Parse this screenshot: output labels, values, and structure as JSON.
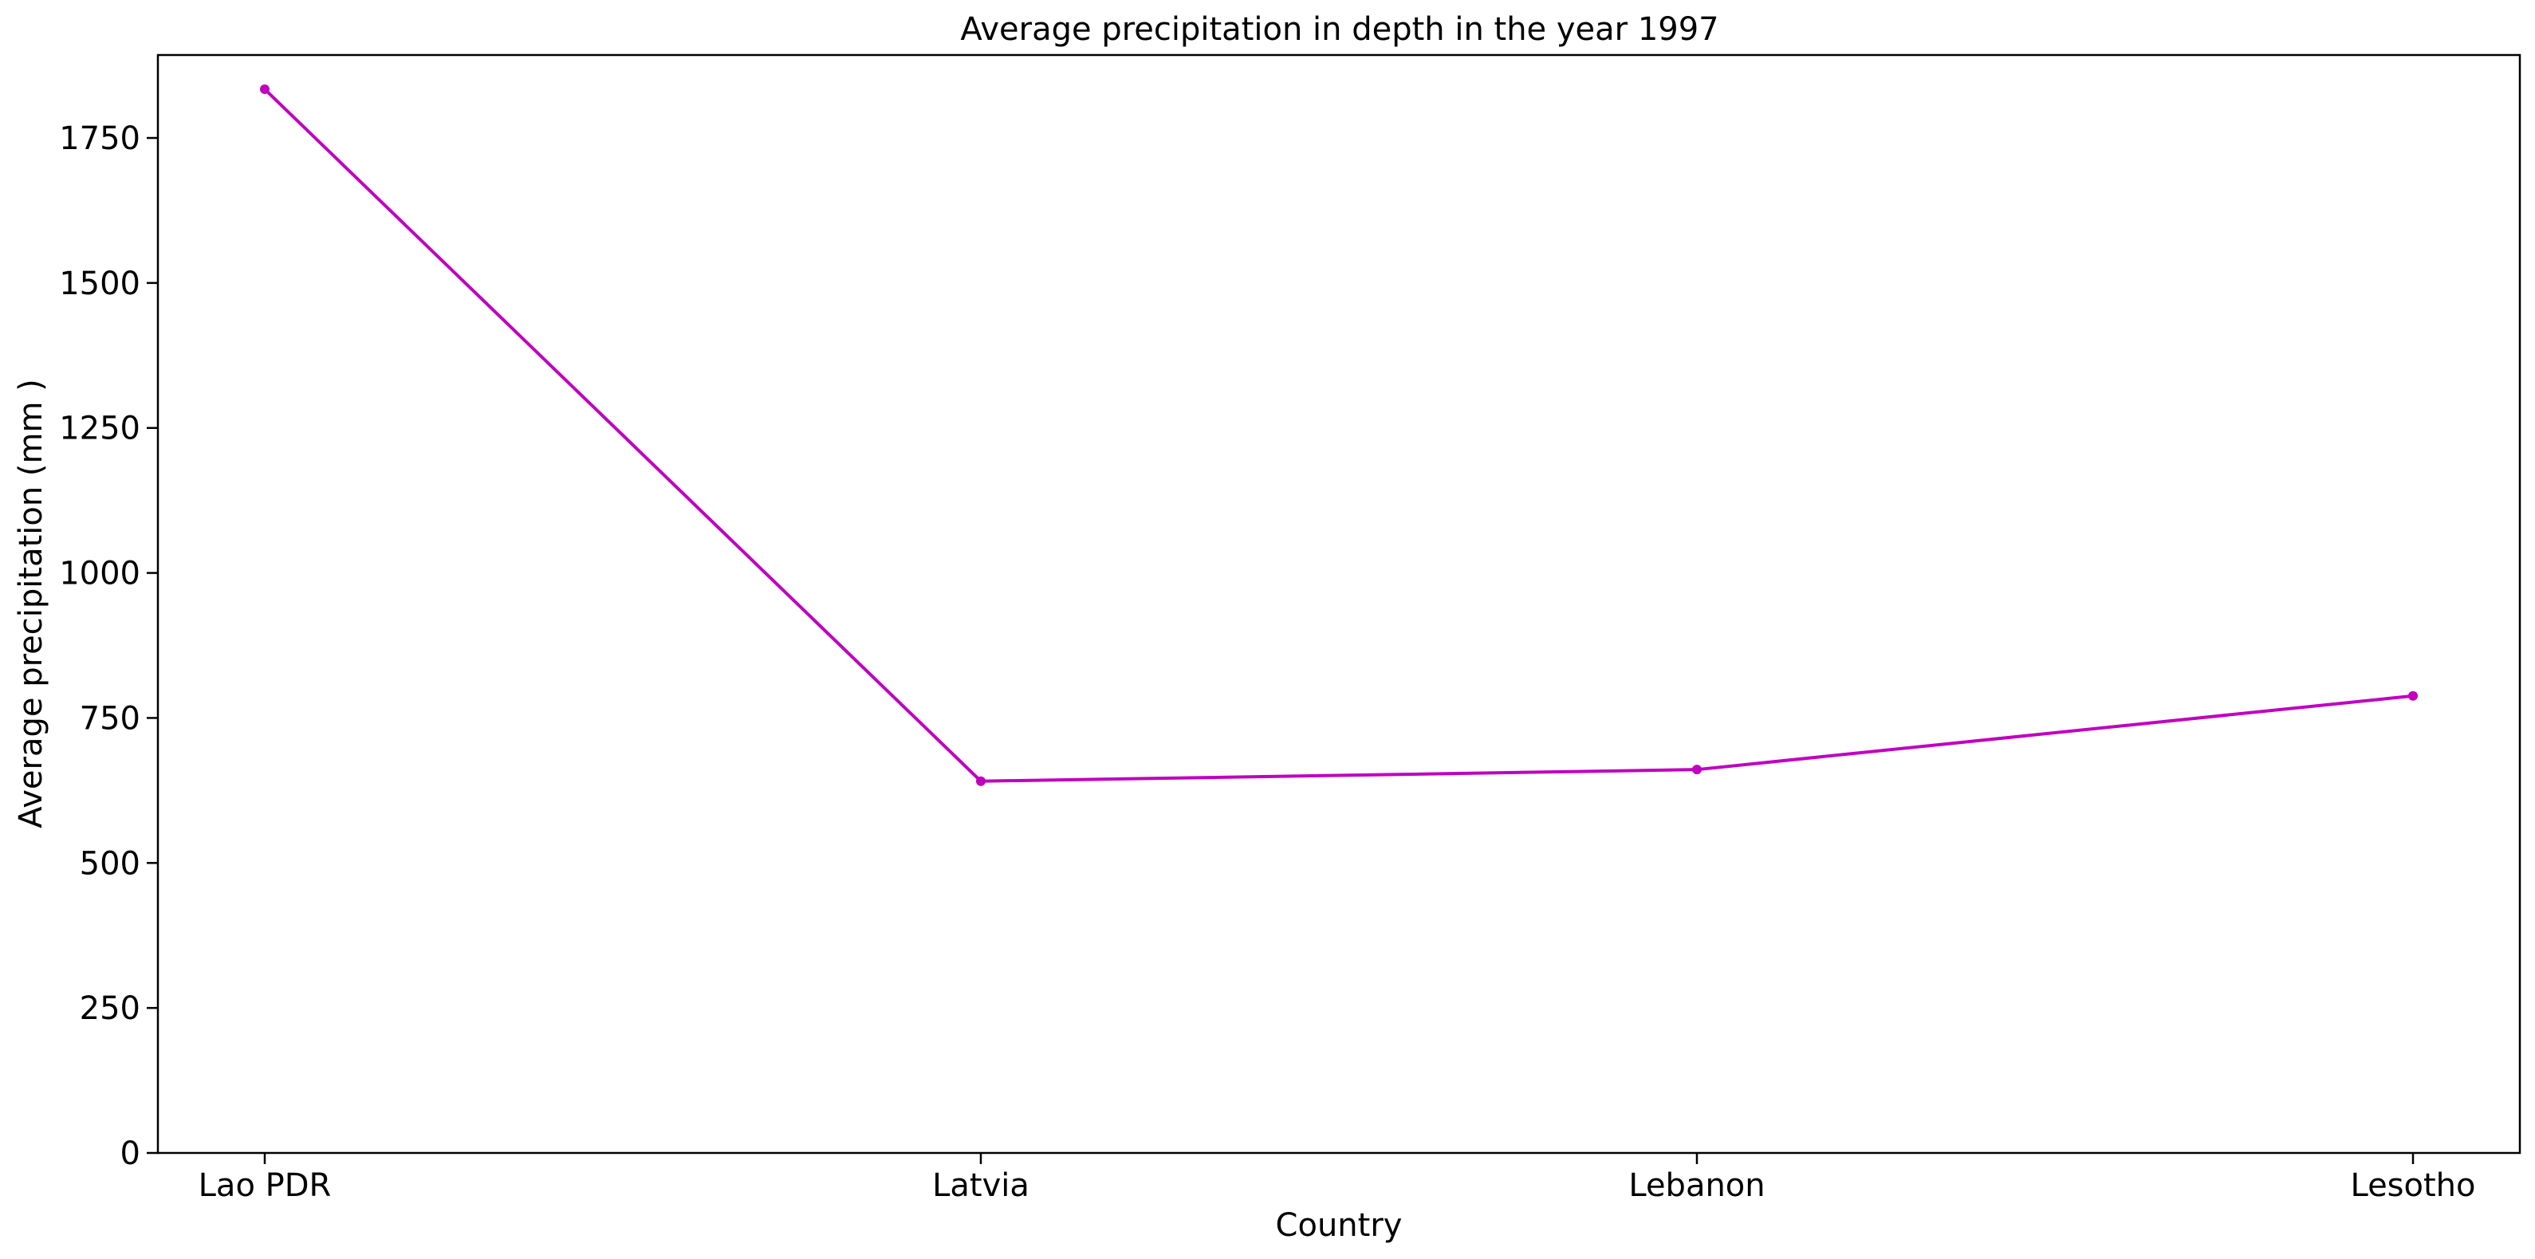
{
  "chart_data": {
    "type": "line",
    "title": "Average precipitation in depth in the year 1997",
    "xlabel": "Country",
    "ylabel": "Average precipitation (mm )",
    "categories": [
      "Lao PDR",
      "Latvia",
      "Lebanon",
      "Lesotho"
    ],
    "series": [
      {
        "values": [
          1834,
          641,
          661,
          788
        ],
        "color": "#bf00bf"
      }
    ],
    "ylim": [
      0,
      1893
    ],
    "yticks": [
      0,
      250,
      500,
      750,
      1000,
      1250,
      1500,
      1750
    ],
    "grid": false,
    "legend": "none",
    "marker": "dot"
  }
}
